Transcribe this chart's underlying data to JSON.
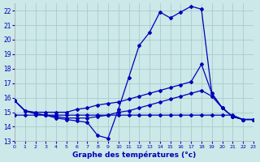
{
  "bg_color": "#cce8e8",
  "grid_color": "#aacccc",
  "line_color": "#0000bb",
  "xlim": [
    0,
    23
  ],
  "ylim": [
    13,
    22.5
  ],
  "yticks": [
    13,
    14,
    15,
    16,
    17,
    18,
    19,
    20,
    21,
    22
  ],
  "xticks": [
    0,
    1,
    2,
    3,
    4,
    5,
    6,
    7,
    8,
    9,
    10,
    11,
    12,
    13,
    14,
    15,
    16,
    17,
    18,
    19,
    20,
    21,
    22,
    23
  ],
  "xlabel": "Graphe des températures (°c)",
  "curve1_x": [
    0,
    1,
    2,
    3,
    4,
    5,
    6,
    7,
    8,
    9,
    10,
    11,
    12,
    13,
    14,
    15,
    16,
    17,
    18,
    19,
    20,
    21,
    22,
    23
  ],
  "curve1_y": [
    15.8,
    15.1,
    14.9,
    14.8,
    14.6,
    14.5,
    14.4,
    14.3,
    13.4,
    13.2,
    15.2,
    17.4,
    19.6,
    20.5,
    21.9,
    21.5,
    21.9,
    22.3,
    22.1,
    16.3,
    15.3,
    14.7,
    14.5,
    14.5
  ],
  "curve2_x": [
    0,
    1,
    2,
    3,
    4,
    5,
    6,
    7,
    8,
    9,
    10,
    11,
    12,
    13,
    14,
    15,
    16,
    17,
    18,
    19,
    20,
    21,
    22,
    23
  ],
  "curve2_y": [
    14.8,
    14.8,
    14.8,
    14.8,
    14.8,
    14.8,
    14.8,
    14.8,
    14.8,
    14.8,
    14.8,
    14.8,
    14.8,
    14.8,
    14.8,
    14.8,
    14.8,
    14.8,
    14.8,
    14.8,
    14.8,
    14.8,
    14.5,
    14.5
  ],
  "curve3_x": [
    0,
    1,
    2,
    3,
    4,
    5,
    6,
    7,
    8,
    9,
    10,
    11,
    12,
    13,
    14,
    15,
    16,
    17,
    18,
    19,
    20,
    21,
    22,
    23
  ],
  "curve3_y": [
    15.8,
    15.1,
    15.0,
    15.0,
    15.0,
    15.0,
    15.2,
    15.3,
    15.5,
    15.6,
    15.7,
    15.9,
    16.1,
    16.3,
    16.5,
    16.7,
    16.9,
    17.1,
    18.3,
    16.3,
    15.3,
    14.7,
    14.5,
    14.5
  ],
  "curve4_x": [
    0,
    1,
    2,
    3,
    4,
    5,
    6,
    7,
    8,
    9,
    10,
    11,
    12,
    13,
    14,
    15,
    16,
    17,
    18,
    19,
    20,
    21,
    22,
    23
  ],
  "curve4_y": [
    15.8,
    15.1,
    14.9,
    14.8,
    14.7,
    14.6,
    14.6,
    14.6,
    14.7,
    14.8,
    15.0,
    15.1,
    15.3,
    15.5,
    15.7,
    15.9,
    16.1,
    16.3,
    16.5,
    16.1,
    15.3,
    14.7,
    14.5,
    14.5
  ]
}
